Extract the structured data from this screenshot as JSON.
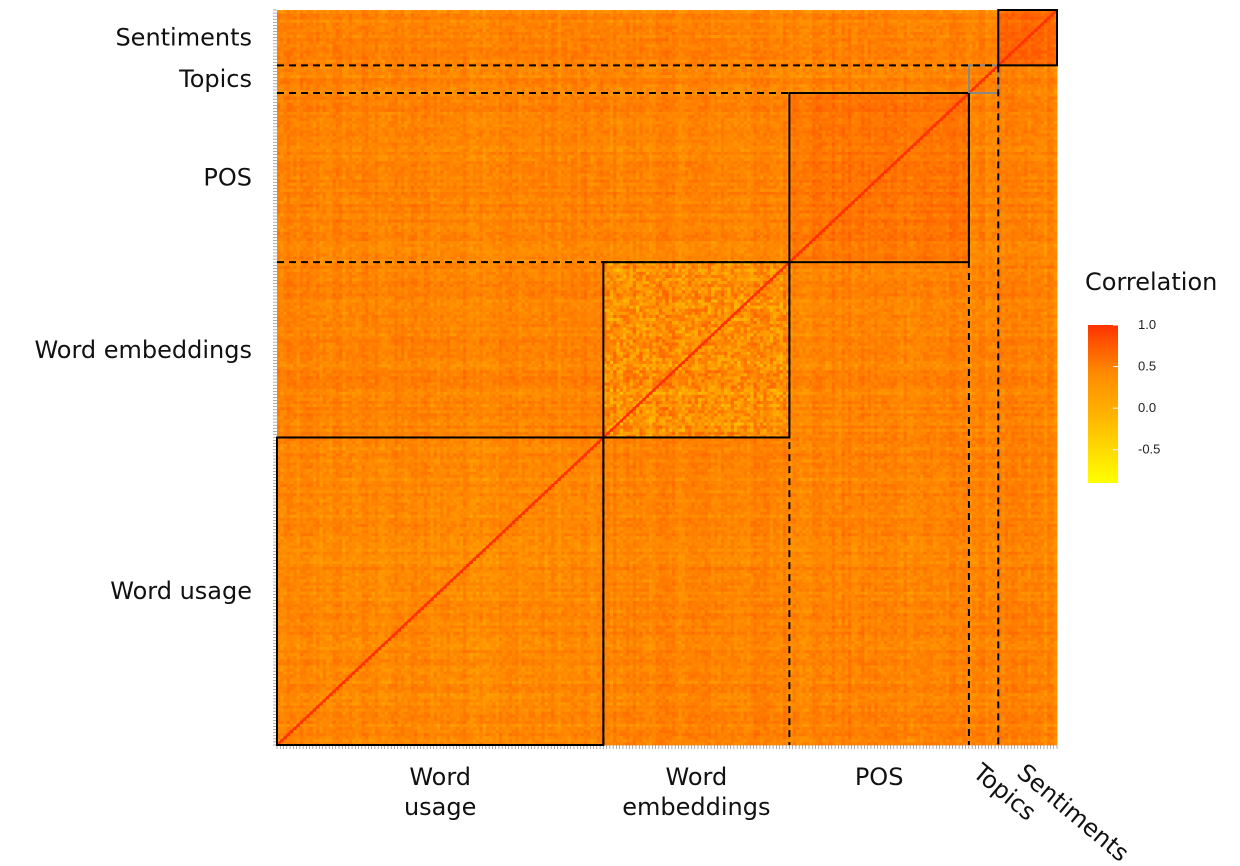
{
  "chart_data": {
    "type": "heatmap",
    "title": "",
    "matrix": "square correlation matrix of text features (rows and columns in the same order); diagonal = 1.0",
    "groups": [
      {
        "name": "Word usage",
        "x_label": "Word\nusage",
        "y_label": "Word usage",
        "approx_features": 100
      },
      {
        "name": "Word embeddings",
        "x_label": "Word\nembeddings",
        "y_label": "Word embeddings",
        "approx_features": 57
      },
      {
        "name": "POS",
        "x_label": "POS",
        "y_label": "POS",
        "approx_features": 55
      },
      {
        "name": "Topics",
        "x_label": "Topics",
        "y_label": "Topics",
        "approx_features": 9
      },
      {
        "name": "Sentiments",
        "x_label": "Sentiments",
        "y_label": "Sentiments",
        "approx_features": 18
      }
    ],
    "x_axis_order": [
      "Word usage",
      "Word embeddings",
      "POS",
      "Topics",
      "Sentiments"
    ],
    "y_axis_order_top_to_bottom": [
      "Sentiments",
      "Topics",
      "POS",
      "Word embeddings",
      "Word usage"
    ],
    "block_mean_correlation": {
      "Word usage|Word usage": 0.1,
      "Word embeddings|Word embeddings": 0.05,
      "POS|POS": 0.3,
      "Topics|Topics": 0.2,
      "Sentiments|Sentiments": 0.4,
      "cross_group": 0.15
    },
    "diagonal_value": 1.0,
    "legend": {
      "title": "Correlation",
      "ticks": [
        "1.0",
        "0.5",
        "0.0",
        "-0.5"
      ],
      "tick_values": [
        1.0,
        0.5,
        0.0,
        -0.5
      ],
      "range": [
        -0.9,
        1.0
      ],
      "colors": {
        "low": "#ffff00",
        "mid": "#ff9900",
        "high": "#ff3300"
      },
      "placement": "right"
    },
    "block_outlines": {
      "solid": "#000000",
      "topics_box": "#888888",
      "dashed": "#000000"
    }
  }
}
